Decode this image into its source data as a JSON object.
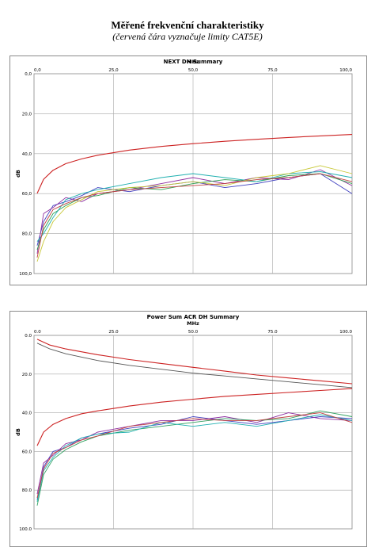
{
  "page": {
    "title": "Měřené frekvenční charakteristiky",
    "subtitle": "(červená čára vyznačuje limity CAT5E)"
  },
  "colors": {
    "limit": "#cc2222",
    "series": [
      "#4040c0",
      "#8e2ea0",
      "#2ea050",
      "#20b0b0",
      "#c8c838",
      "#555555",
      "#c04040",
      "#30a060"
    ]
  },
  "chart_data": [
    {
      "type": "line",
      "title": "NEXT DH Summary",
      "xlabel": "MHz",
      "ylabel": "dB",
      "xlim": [
        0,
        100
      ],
      "ylim": [
        0,
        100
      ],
      "y_inverted": true,
      "x_ticks": [
        "0,0",
        "25,0",
        "50,0",
        "75,0",
        "100,0"
      ],
      "y_ticks": [
        "0,0",
        "20,0",
        "40,0",
        "60,0",
        "80,0",
        "100,0"
      ],
      "grid": true,
      "limit_lines": [
        {
          "color": "#cc2222",
          "x": [
            1,
            3,
            6,
            10,
            15,
            20,
            30,
            40,
            50,
            60,
            70,
            80,
            90,
            100
          ],
          "y": [
            59.9,
            52.8,
            48.3,
            45.0,
            42.6,
            40.8,
            38.2,
            36.4,
            35.0,
            33.8,
            32.8,
            31.9,
            31.1,
            30.4
          ]
        }
      ],
      "series": [
        {
          "color": "#4040c0",
          "x": [
            1,
            3,
            6,
            10,
            15,
            20,
            30,
            40,
            50,
            60,
            70,
            80,
            90,
            100
          ],
          "y": [
            86,
            74,
            66,
            64,
            61,
            57,
            59,
            56,
            54,
            57,
            55,
            52,
            50,
            60
          ]
        },
        {
          "color": "#8e2ea0",
          "x": [
            1,
            3,
            6,
            10,
            15,
            20,
            30,
            40,
            50,
            60,
            70,
            80,
            90,
            100
          ],
          "y": [
            90,
            70,
            67,
            62,
            64,
            60,
            58,
            55,
            52,
            55,
            52,
            53,
            48,
            56
          ]
        },
        {
          "color": "#2ea050",
          "x": [
            1,
            3,
            6,
            10,
            15,
            20,
            30,
            40,
            50,
            60,
            70,
            80,
            90,
            100
          ],
          "y": [
            88,
            78,
            70,
            66,
            62,
            61,
            57,
            58,
            55,
            53,
            54,
            51,
            50,
            55
          ]
        },
        {
          "color": "#20b0b0",
          "x": [
            1,
            3,
            6,
            10,
            15,
            20,
            30,
            40,
            50,
            60,
            70,
            80,
            90,
            100
          ],
          "y": [
            84,
            80,
            72,
            63,
            60,
            58,
            55,
            52,
            50,
            52,
            54,
            50,
            49,
            52
          ]
        },
        {
          "color": "#c8c838",
          "x": [
            1,
            3,
            6,
            10,
            15,
            20,
            30,
            40,
            50,
            60,
            70,
            80,
            90,
            100
          ],
          "y": [
            94,
            84,
            74,
            67,
            63,
            59,
            57,
            56,
            54,
            56,
            52,
            50,
            46,
            50
          ]
        },
        {
          "color": "#c04040",
          "x": [
            1,
            3,
            6,
            10,
            15,
            20,
            30,
            40,
            50,
            60,
            70,
            80,
            90,
            100
          ],
          "y": [
            92,
            76,
            68,
            65,
            62,
            60,
            58,
            57,
            56,
            55,
            53,
            52,
            50,
            54
          ]
        }
      ]
    },
    {
      "type": "line",
      "title": "Power Sum ACR DH Summary",
      "xlabel": "MHz",
      "ylabel": "dB",
      "xlim": [
        0,
        100
      ],
      "ylim": [
        0,
        100
      ],
      "y_inverted": true,
      "x_ticks": [
        "0.0",
        "25.0",
        "50.0",
        "75.0",
        "100.0"
      ],
      "y_ticks": [
        "0.0",
        "20.0",
        "40.0",
        "60.0",
        "80.0",
        "100.0"
      ],
      "grid": true,
      "limit_lines": [
        {
          "color": "#cc2222",
          "x": [
            1,
            5,
            10,
            20,
            30,
            40,
            50,
            60,
            70,
            80,
            90,
            100
          ],
          "y": [
            2,
            5,
            7,
            10,
            12.5,
            14.5,
            16.5,
            18.5,
            20.5,
            22,
            23.5,
            25
          ]
        },
        {
          "color": "#cc2222",
          "x": [
            1,
            3,
            6,
            10,
            15,
            20,
            30,
            40,
            50,
            60,
            70,
            80,
            90,
            100
          ],
          "y": [
            57,
            50,
            46,
            43,
            40.5,
            39,
            36.5,
            34.5,
            33,
            31.5,
            30.5,
            29.5,
            28.5,
            27.5
          ]
        }
      ],
      "series": [
        {
          "color": "#555555",
          "x": [
            1,
            5,
            10,
            20,
            30,
            40,
            50,
            60,
            70,
            80,
            90,
            100
          ],
          "y": [
            4,
            7,
            9.5,
            13,
            15.5,
            17.5,
            19.5,
            21,
            22.5,
            24,
            25.5,
            27
          ]
        },
        {
          "color": "#4040c0",
          "x": [
            1,
            3,
            6,
            10,
            15,
            20,
            30,
            40,
            50,
            60,
            70,
            80,
            90,
            100
          ],
          "y": [
            85,
            68,
            60,
            58,
            53,
            51,
            48,
            46,
            42,
            44,
            46,
            44,
            42,
            43
          ]
        },
        {
          "color": "#8e2ea0",
          "x": [
            1,
            3,
            6,
            10,
            15,
            20,
            30,
            40,
            50,
            60,
            70,
            80,
            90,
            100
          ],
          "y": [
            82,
            66,
            62,
            56,
            54,
            50,
            47,
            44,
            44,
            42,
            45,
            40,
            43,
            44
          ]
        },
        {
          "color": "#30a060",
          "x": [
            1,
            3,
            6,
            10,
            15,
            20,
            30,
            40,
            50,
            60,
            70,
            80,
            90,
            100
          ],
          "y": [
            88,
            72,
            64,
            59,
            55,
            52,
            49,
            47,
            45,
            43,
            44,
            43,
            39,
            42
          ]
        },
        {
          "color": "#20b0b0",
          "x": [
            1,
            3,
            6,
            10,
            15,
            20,
            30,
            40,
            50,
            60,
            70,
            80,
            90,
            100
          ],
          "y": [
            86,
            70,
            63,
            57,
            53,
            51,
            50,
            45,
            47,
            45,
            47,
            44,
            41,
            44
          ]
        },
        {
          "color": "#c04040",
          "x": [
            1,
            3,
            6,
            10,
            15,
            20,
            30,
            40,
            50,
            60,
            70,
            80,
            90,
            100
          ],
          "y": [
            84,
            69,
            61,
            58,
            54,
            52,
            47,
            45,
            43,
            44,
            44,
            42,
            40,
            45
          ]
        }
      ]
    }
  ]
}
